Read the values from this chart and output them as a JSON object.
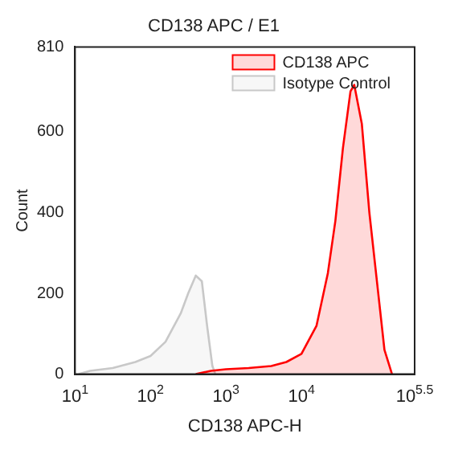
{
  "chart_data": {
    "type": "area",
    "title": "CD138 APC / E1",
    "xlabel": "CD138 APC-H",
    "ylabel": "Count",
    "log": "x",
    "xlim": [
      10,
      316228
    ],
    "xticks": [
      {
        "value": 10,
        "label": "10$^{1}$"
      },
      {
        "value": 100,
        "label": "10$^{2}$"
      },
      {
        "value": 1000,
        "label": "10$^{3}$"
      },
      {
        "value": 10000,
        "label": "10$^{4}$"
      },
      {
        "value": 316228,
        "label": "10$^{5.5}$"
      }
    ],
    "ylim": [
      0,
      810
    ],
    "yticks": [
      0,
      200,
      400,
      600,
      810
    ],
    "grid": false,
    "legend": "top right",
    "marker": "none",
    "series": [
      {
        "name": "CD138 APC",
        "color": "#ff0000",
        "x": [
          398,
          631,
          1000,
          1995,
          3981,
          6310,
          10000,
          15849,
          22387,
          28184,
          35481,
          44668,
          50119,
          63096,
          79433,
          100000,
          125893,
          158489
        ],
        "values": [
          0,
          8,
          12,
          15,
          20,
          30,
          50,
          120,
          250,
          380,
          560,
          700,
          716,
          620,
          400,
          230,
          60,
          0
        ]
      },
      {
        "name": "Isotype Control",
        "color": "#c8c8c8",
        "x": [
          11.2,
          15.8,
          31.6,
          63,
          100,
          158,
          251,
          316,
          398,
          479,
          562,
          661,
          724
        ],
        "values": [
          0,
          8,
          15,
          30,
          45,
          80,
          150,
          200,
          244,
          230,
          120,
          20,
          0
        ]
      }
    ]
  }
}
